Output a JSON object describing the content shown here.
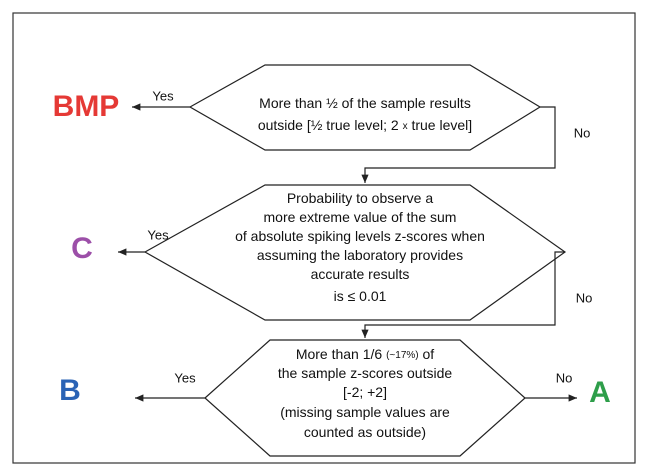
{
  "nodes": [
    {
      "lines": [
        [
          "More than ½ of the sample results"
        ],
        [
          "outside [½ true level; 2 ",
          "x",
          " true level]"
        ]
      ]
    },
    {
      "lines": [
        [
          "Probability to observe a"
        ],
        [
          "more extreme value of the sum"
        ],
        [
          "of absolute spiking levels z-scores when"
        ],
        [
          "assuming the laboratory provides"
        ],
        [
          "accurate results"
        ],
        [
          "is ≤ 0.01"
        ]
      ]
    },
    {
      "lines": [
        [
          "More than 1/6 ",
          "(~17%)",
          " of"
        ],
        [
          "the sample z-scores outside"
        ],
        [
          "[-2; +2]"
        ],
        [
          "(missing sample values are"
        ],
        [
          "counted as outside)"
        ]
      ]
    }
  ],
  "outcomes": [
    "BMP",
    "C",
    "B",
    "A"
  ],
  "edges": {
    "yes": [
      "Yes",
      "Yes",
      "Yes"
    ],
    "no": [
      "No",
      "No",
      "No"
    ]
  }
}
